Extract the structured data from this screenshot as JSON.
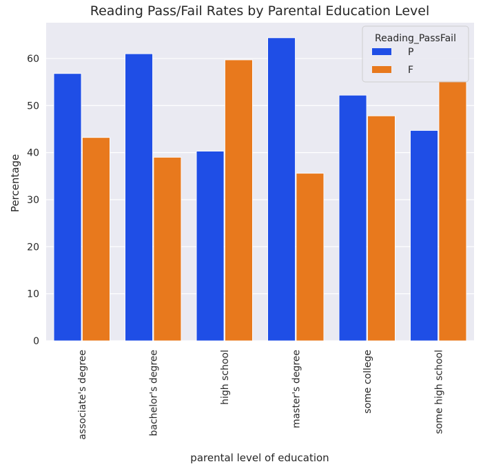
{
  "chart_data": {
    "type": "bar",
    "title": "Reading Pass/Fail Rates by Parental Education Level",
    "xlabel": "parental level of education",
    "ylabel": "Percentage",
    "categories": [
      "associate's degree",
      "bachelor's degree",
      "high school",
      "master's degree",
      "some college",
      "some high school"
    ],
    "series": [
      {
        "name": "P",
        "color": "#1f4ee6",
        "values": [
          56.8,
          61.0,
          40.3,
          64.4,
          52.2,
          44.7
        ]
      },
      {
        "name": "F",
        "color": "#e8791d",
        "values": [
          43.2,
          39.0,
          59.7,
          35.6,
          47.8,
          55.3
        ]
      }
    ],
    "ylim": [
      0,
      67.6
    ],
    "yticks": [
      0,
      10,
      20,
      30,
      40,
      50,
      60
    ],
    "grid": true,
    "legend": {
      "title": "Reading_PassFail",
      "placement": "top-right"
    },
    "background": "#eaeaf2"
  }
}
